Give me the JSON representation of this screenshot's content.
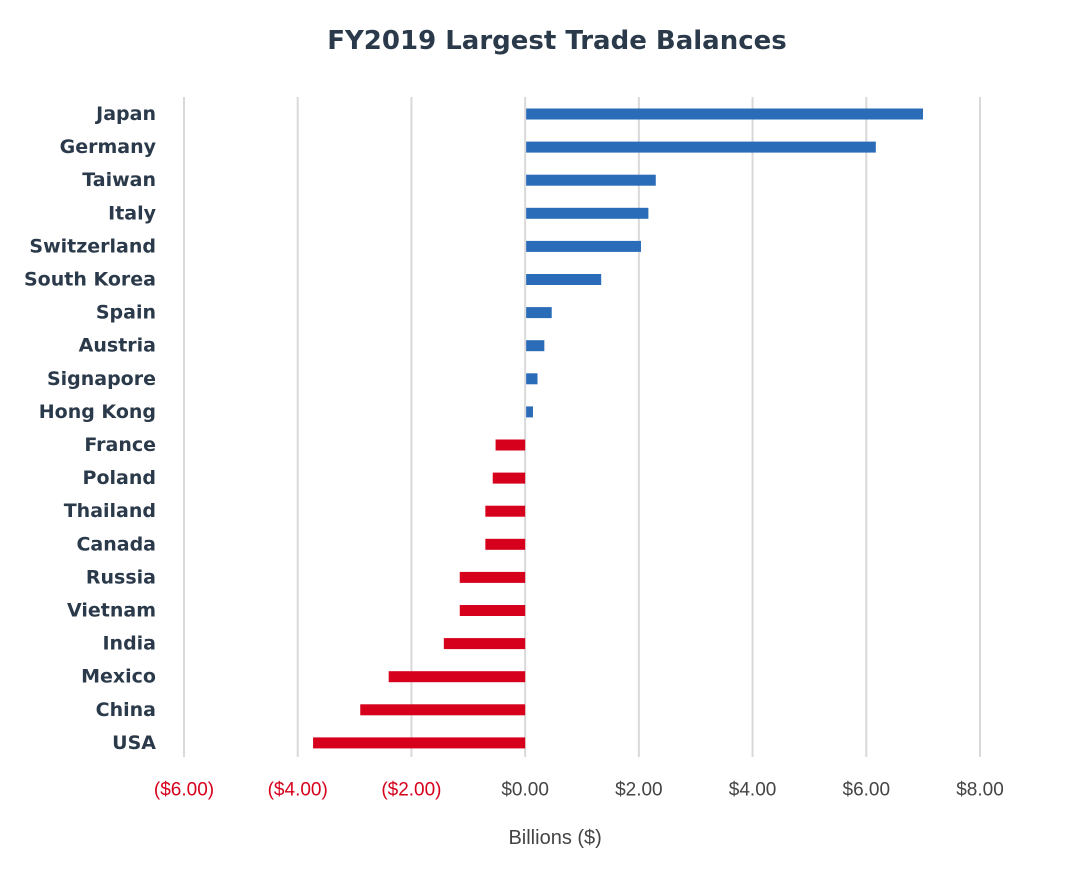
{
  "chart_data": {
    "type": "bar",
    "orientation": "horizontal",
    "title": "FY2019 Largest Trade Balances",
    "xlabel": "Billions ($)",
    "ylabel": "",
    "xlim": [
      -6,
      8
    ],
    "grid": true,
    "categories": [
      "Japan",
      "Germany",
      "Taiwan",
      "Italy",
      "Switzerland",
      "South Korea",
      "Spain",
      "Austria",
      "Signapore",
      "Hong Kong",
      "France",
      "Poland",
      "Thailand",
      "Canada",
      "Russia",
      "Vietnam",
      "India",
      "Mexico",
      "China",
      "USA"
    ],
    "values": [
      6.98,
      6.15,
      2.28,
      2.15,
      2.02,
      1.32,
      0.45,
      0.32,
      0.2,
      0.12,
      -0.52,
      -0.57,
      -0.7,
      -0.7,
      -1.15,
      -1.15,
      -1.43,
      -2.4,
      -2.9,
      -3.73
    ],
    "ticks": [
      -6,
      -4,
      -2,
      0,
      2,
      4,
      6,
      8
    ],
    "tick_labels": [
      "($6.00)",
      "($4.00)",
      "($2.00)",
      "$0.00",
      "$2.00",
      "$4.00",
      "$6.00",
      "$8.00"
    ],
    "colors": {
      "positive": "#2b6cb8",
      "negative": "#d6001c",
      "negative_tick": "#d6001c",
      "positive_tick": "#444444",
      "grid": "#d9d9d9"
    }
  }
}
